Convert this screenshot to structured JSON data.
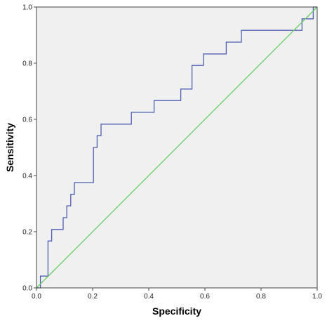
{
  "chart_data": {
    "type": "line",
    "title": "",
    "xlabel": "Specificity",
    "ylabel": "Sensitivity",
    "xlim": [
      0.0,
      1.0
    ],
    "ylim": [
      0.0,
      1.0
    ],
    "x_ticks": [
      "0.0",
      "0.2",
      "0.4",
      "0.6",
      "0.8",
      "1.0"
    ],
    "y_ticks": [
      "0.0",
      "0.2",
      "0.4",
      "0.6",
      "0.8",
      "1.0"
    ],
    "grid": false,
    "legend": "none",
    "plot_background": "#f0f0f0",
    "series": [
      {
        "color": "#4d5fb3",
        "step": true,
        "x": [
          0.0,
          0.014,
          0.014,
          0.041,
          0.041,
          0.054,
          0.054,
          0.095,
          0.095,
          0.108,
          0.108,
          0.122,
          0.122,
          0.135,
          0.135,
          0.149,
          0.149,
          0.203,
          0.203,
          0.216,
          0.216,
          0.23,
          0.23,
          0.243,
          0.243,
          0.338,
          0.338,
          0.419,
          0.419,
          0.514,
          0.514,
          0.554,
          0.554,
          0.595,
          0.595,
          0.676,
          0.676,
          0.73,
          0.73,
          0.946,
          0.946,
          0.986,
          0.986,
          1.0
        ],
        "y": [
          0.0,
          0.0,
          0.042,
          0.042,
          0.167,
          0.167,
          0.208,
          0.208,
          0.25,
          0.25,
          0.292,
          0.292,
          0.333,
          0.333,
          0.375,
          0.375,
          0.375,
          0.375,
          0.5,
          0.5,
          0.542,
          0.542,
          0.583,
          0.583,
          0.583,
          0.583,
          0.625,
          0.625,
          0.667,
          0.667,
          0.708,
          0.708,
          0.792,
          0.792,
          0.833,
          0.833,
          0.875,
          0.875,
          0.917,
          0.917,
          0.958,
          0.958,
          1.0,
          1.0
        ]
      },
      {
        "color": "#66cc66",
        "step": false,
        "x": [
          0.0,
          1.0
        ],
        "y": [
          0.0,
          1.0
        ]
      }
    ]
  }
}
